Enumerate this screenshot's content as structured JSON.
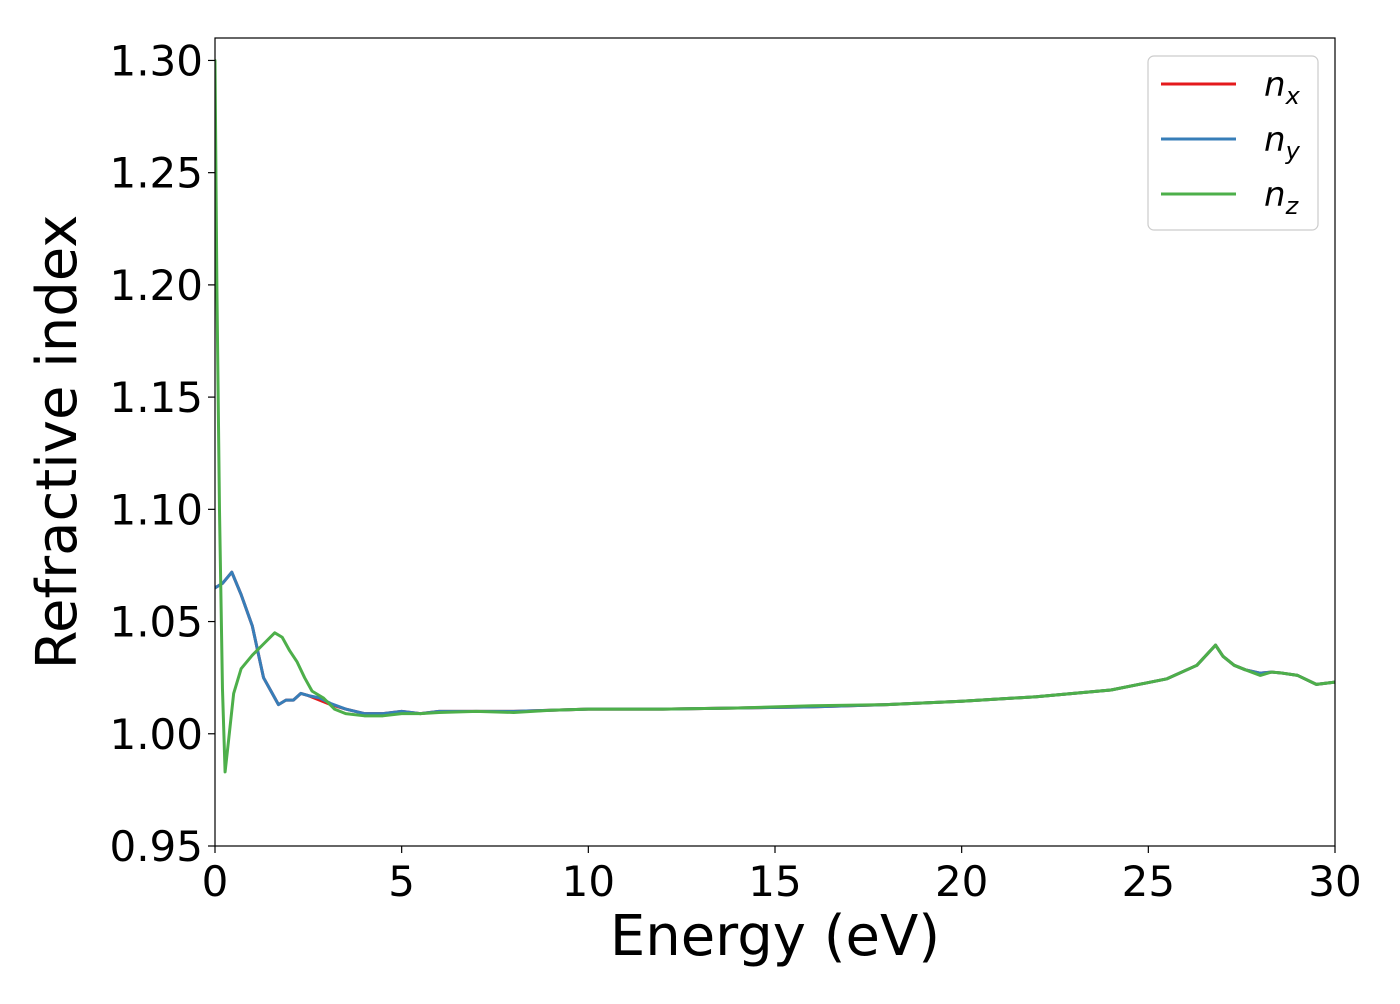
{
  "chart_data": {
    "type": "line",
    "title": "",
    "xlabel": "Energy (eV)",
    "ylabel": "Refractive index",
    "xlim": [
      0,
      30
    ],
    "ylim": [
      0.95,
      1.31
    ],
    "xticks": [
      0,
      5,
      10,
      15,
      20,
      25,
      30
    ],
    "xtick_labels": [
      "0",
      "5",
      "10",
      "15",
      "20",
      "25",
      "30"
    ],
    "yticks": [
      0.95,
      1.0,
      1.05,
      1.1,
      1.15,
      1.2,
      1.25,
      1.3
    ],
    "ytick_labels": [
      "0.95",
      "1.00",
      "1.05",
      "1.10",
      "1.15",
      "1.20",
      "1.25",
      "1.30"
    ],
    "grid": false,
    "legend_position": "top-right",
    "series": [
      {
        "name": "n_x",
        "legend_base": "n",
        "legend_sub": "x",
        "color": "#e41a1c",
        "x": [
          0.0,
          0.2,
          0.45,
          0.7,
          1.0,
          1.3,
          1.5,
          1.7,
          1.9,
          2.1,
          2.3,
          2.5,
          2.8,
          3.1,
          3.5,
          4.0,
          4.5,
          5.0,
          5.5,
          6.0,
          7.0,
          8.0,
          9.0,
          10.0,
          12.0,
          14.0,
          16.0,
          18.0,
          20.0,
          22.0,
          24.0,
          25.5,
          26.3,
          26.8,
          27.0,
          27.3,
          27.6,
          28.0,
          28.3,
          28.6,
          29.0,
          29.5,
          30.0
        ],
        "y": [
          1.065,
          1.067,
          1.072,
          1.062,
          1.048,
          1.025,
          1.019,
          1.013,
          1.015,
          1.015,
          1.018,
          1.017,
          1.015,
          1.013,
          1.011,
          1.009,
          1.009,
          1.01,
          1.009,
          1.01,
          1.01,
          1.01,
          1.0105,
          1.011,
          1.011,
          1.0115,
          1.012,
          1.013,
          1.0145,
          1.0165,
          1.0195,
          1.0245,
          1.0305,
          1.0395,
          1.0345,
          1.0305,
          1.0285,
          1.027,
          1.0275,
          1.027,
          1.026,
          1.022,
          1.023
        ]
      },
      {
        "name": "n_y",
        "legend_base": "n",
        "legend_sub": "y",
        "color": "#377eb8",
        "x": [
          0.0,
          0.2,
          0.45,
          0.7,
          1.0,
          1.3,
          1.5,
          1.7,
          1.9,
          2.1,
          2.3,
          2.5,
          2.8,
          3.1,
          3.5,
          4.0,
          4.5,
          5.0,
          5.5,
          6.0,
          7.0,
          8.0,
          9.0,
          10.0,
          12.0,
          14.0,
          16.0,
          18.0,
          20.0,
          22.0,
          24.0,
          25.5,
          26.3,
          26.8,
          27.0,
          27.3,
          27.6,
          28.0,
          28.3,
          28.6,
          29.0,
          29.5,
          30.0
        ],
        "y": [
          1.065,
          1.067,
          1.072,
          1.062,
          1.048,
          1.025,
          1.019,
          1.013,
          1.015,
          1.015,
          1.018,
          1.017,
          1.016,
          1.0135,
          1.011,
          1.009,
          1.009,
          1.01,
          1.009,
          1.01,
          1.01,
          1.01,
          1.0105,
          1.011,
          1.011,
          1.0115,
          1.012,
          1.013,
          1.0145,
          1.0165,
          1.0195,
          1.0245,
          1.0305,
          1.0395,
          1.0345,
          1.0305,
          1.0285,
          1.027,
          1.0275,
          1.027,
          1.026,
          1.022,
          1.023
        ]
      },
      {
        "name": "n_z",
        "legend_base": "n",
        "legend_sub": "z",
        "color": "#4daf4a",
        "x": [
          0.0,
          0.05,
          0.12,
          0.2,
          0.27,
          0.35,
          0.5,
          0.7,
          1.0,
          1.3,
          1.6,
          1.8,
          2.0,
          2.2,
          2.4,
          2.6,
          2.9,
          3.2,
          3.5,
          4.0,
          4.5,
          5.0,
          5.5,
          6.0,
          7.0,
          8.0,
          9.0,
          10.0,
          12.0,
          14.0,
          16.0,
          18.0,
          20.0,
          22.0,
          24.0,
          25.5,
          26.3,
          26.8,
          27.0,
          27.3,
          27.6,
          28.0,
          28.3,
          28.6,
          29.0,
          29.5,
          30.0
        ],
        "y": [
          1.3,
          1.2,
          1.1,
          1.02,
          0.983,
          0.995,
          1.018,
          1.029,
          1.035,
          1.04,
          1.045,
          1.043,
          1.037,
          1.032,
          1.025,
          1.019,
          1.016,
          1.011,
          1.009,
          1.008,
          1.008,
          1.009,
          1.009,
          1.0095,
          1.01,
          1.0095,
          1.0105,
          1.011,
          1.011,
          1.0115,
          1.0125,
          1.013,
          1.0145,
          1.0165,
          1.0195,
          1.0245,
          1.0305,
          1.0395,
          1.0345,
          1.0305,
          1.0285,
          1.026,
          1.0275,
          1.027,
          1.026,
          1.022,
          1.023
        ]
      }
    ]
  }
}
